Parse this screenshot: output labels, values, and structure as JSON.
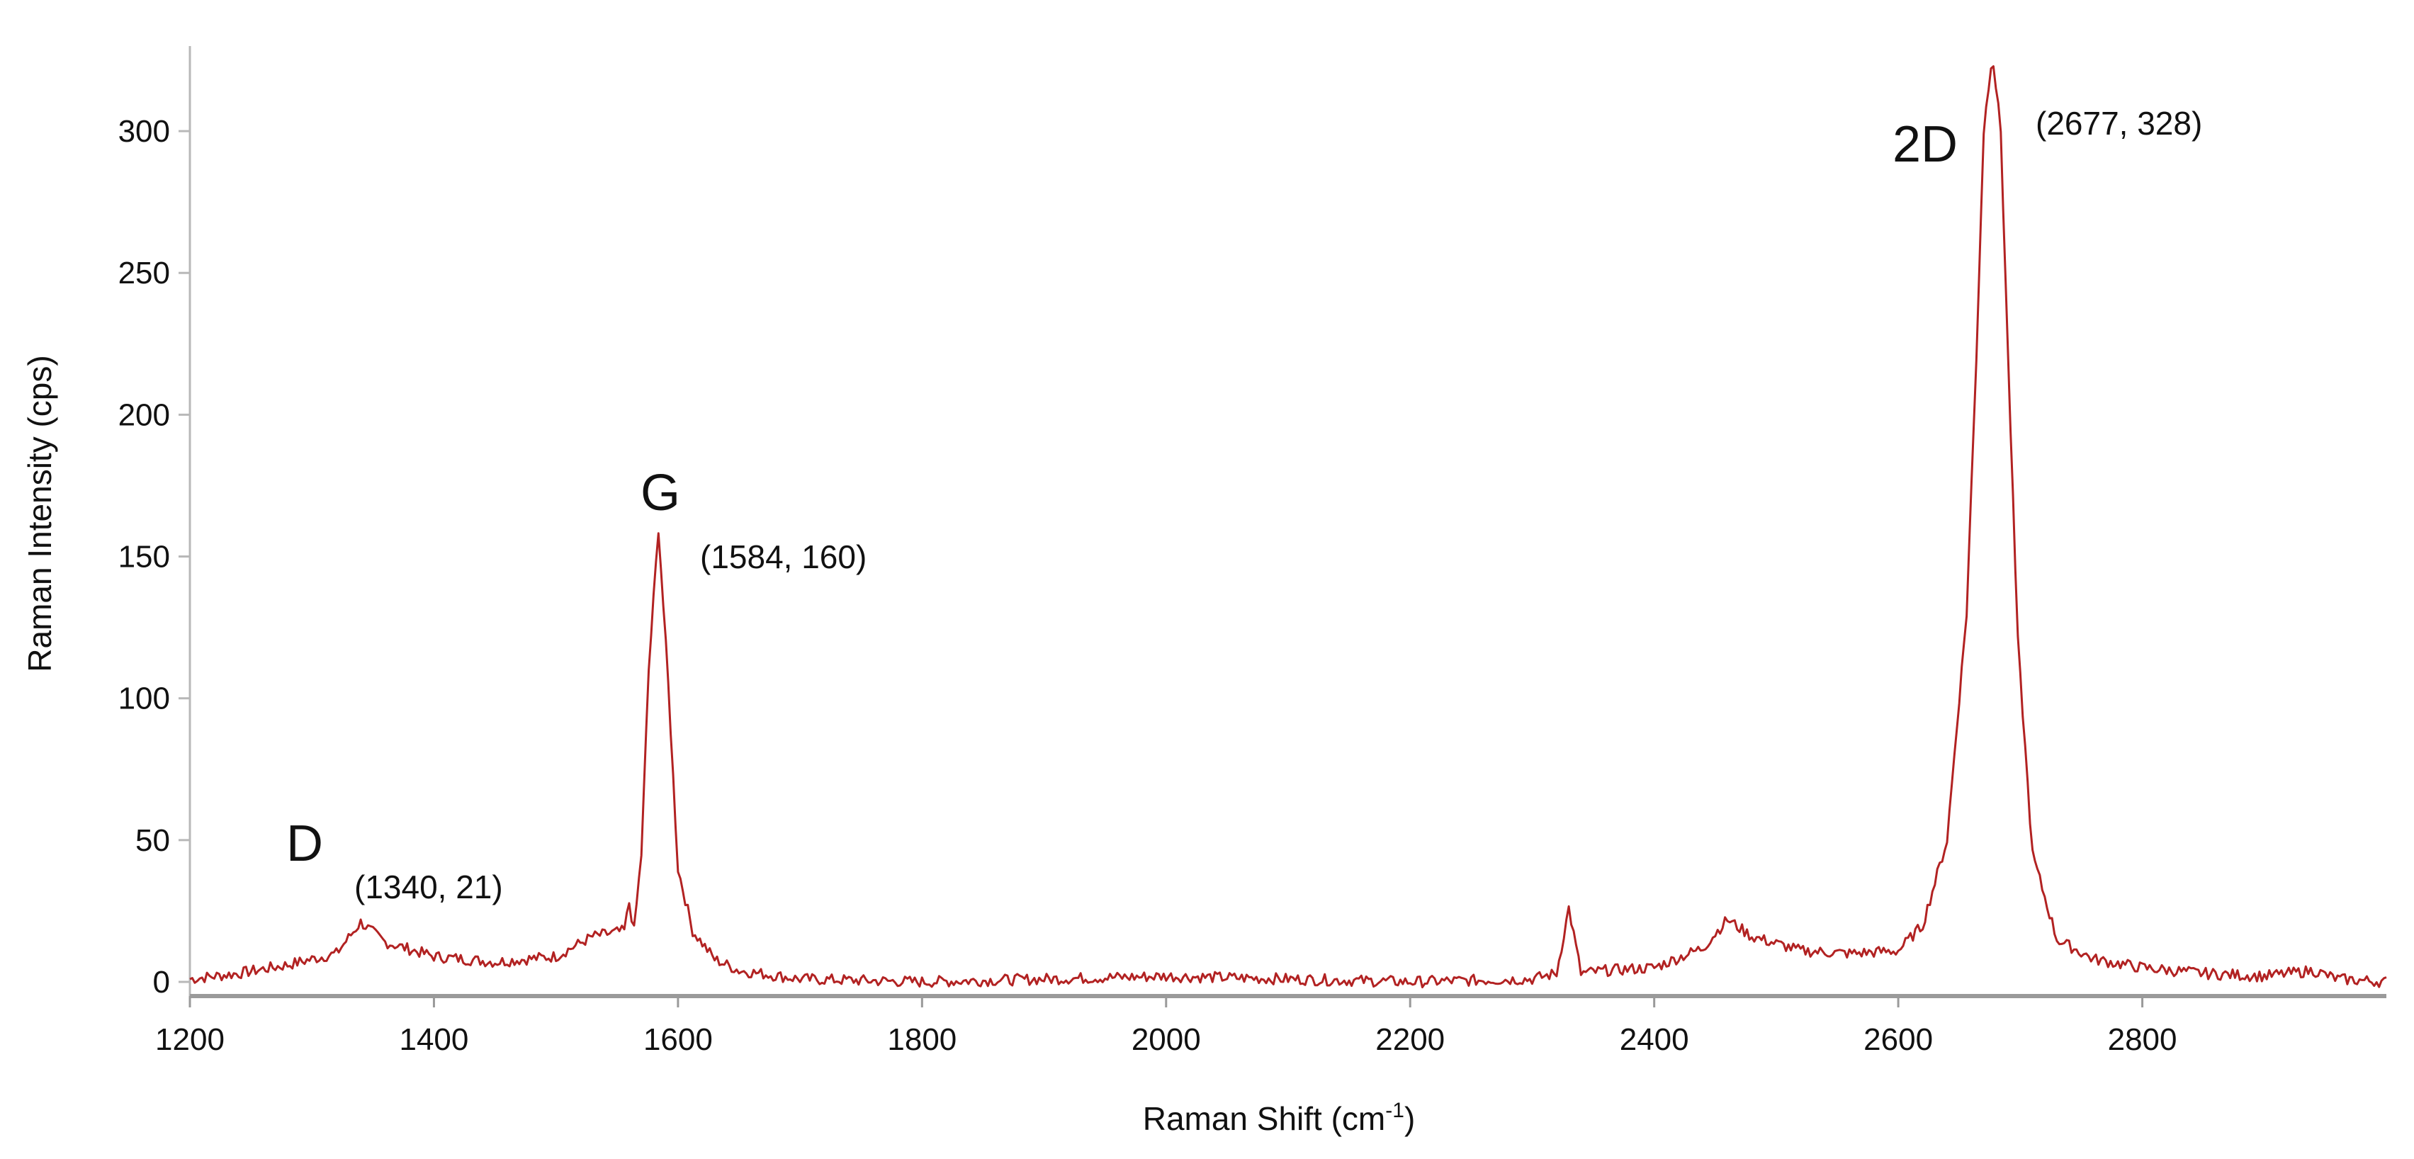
{
  "chart_data": {
    "type": "line",
    "title": "",
    "xlabel": "Raman Shift (cm",
    "xlabel_sup": "-1",
    "xlabel_suffix": ")",
    "ylabel": "Raman Intensity (cps)",
    "xlim": [
      1200,
      3000
    ],
    "ylim": [
      -5,
      330
    ],
    "grid": false,
    "x_ticks": [
      "1200",
      "1400",
      "1600",
      "1800",
      "2000",
      "2200",
      "2400",
      "2600",
      "2800"
    ],
    "y_ticks": [
      "0",
      "50",
      "100",
      "150",
      "200",
      "250",
      "300"
    ],
    "line_color": "#b22222",
    "series": [
      {
        "x": [
          1200,
          1240,
          1280,
          1320,
          1340,
          1360,
          1400,
          1450,
          1500,
          1530,
          1556,
          1560,
          1564,
          1570,
          1576,
          1584,
          1592,
          1600,
          1612,
          1630,
          1650,
          1700,
          1800,
          1900,
          2000,
          2100,
          2200,
          2300,
          2320,
          2330,
          2340,
          2360,
          2400,
          2440,
          2460,
          2480,
          2520,
          2560,
          2600,
          2620,
          2640,
          2656,
          2664,
          2670,
          2677,
          2684,
          2690,
          2698,
          2710,
          2730,
          2760,
          2800,
          2850,
          2900,
          2940,
          2960,
          3000
        ],
        "y": [
          1,
          3,
          6,
          10,
          21,
          14,
          9,
          7,
          9,
          16,
          18,
          28,
          18,
          45,
          110,
          160,
          105,
          40,
          18,
          8,
          4,
          1,
          0,
          1,
          2,
          1,
          0,
          1,
          3,
          26,
          3,
          4,
          5,
          12,
          22,
          16,
          11,
          10,
          11,
          20,
          50,
          130,
          220,
          300,
          328,
          300,
          220,
          120,
          45,
          15,
          8,
          5,
          3,
          2,
          4,
          1,
          0
        ]
      }
    ],
    "annotations": [
      {
        "label": "D",
        "coord": "(1340, 21)"
      },
      {
        "label": "G",
        "coord": "(1584, 160)"
      },
      {
        "label": "2D",
        "coord": "(2677, 328)"
      }
    ]
  }
}
